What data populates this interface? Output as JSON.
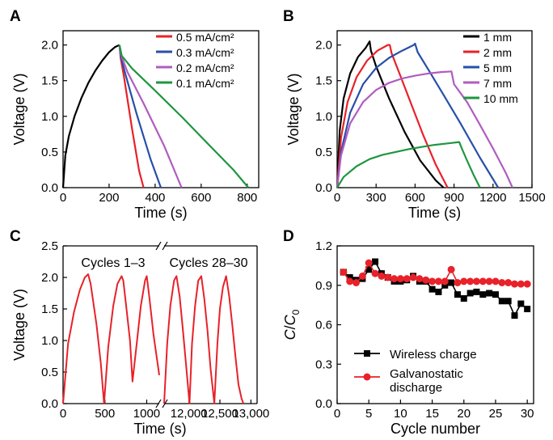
{
  "chart_data": [
    {
      "panel_letter": "A",
      "type": "line",
      "xlabel": "Time (s)",
      "ylabel": "Voltage (V)",
      "xlim": [
        0,
        850
      ],
      "ylim": [
        0,
        2.2
      ],
      "xticks": [
        0,
        200,
        400,
        600,
        800
      ],
      "yticks": [
        0.0,
        0.5,
        1.0,
        1.5,
        2.0
      ],
      "legend": "top-right",
      "series": [
        {
          "name": "",
          "color": "#000000",
          "x": [
            0,
            10,
            25,
            50,
            80,
            110,
            140,
            170,
            200,
            225,
            245
          ],
          "y": [
            0,
            0.45,
            0.72,
            1.0,
            1.26,
            1.47,
            1.64,
            1.78,
            1.9,
            1.97,
            2.0
          ]
        },
        {
          "name": "0.5 mA/cm²",
          "color": "#e8212a",
          "x": [
            245,
            250,
            265,
            300,
            330,
            350
          ],
          "y": [
            2.0,
            1.82,
            1.55,
            0.82,
            0.24,
            0
          ]
        },
        {
          "name": "0.3 mA/cm²",
          "color": "#2650a8",
          "x": [
            245,
            250,
            270,
            320,
            380,
            425
          ],
          "y": [
            2.0,
            1.85,
            1.6,
            1.03,
            0.4,
            0
          ]
        },
        {
          "name": "0.2 mA/cm²",
          "color": "#b05cc0",
          "x": [
            245,
            252,
            280,
            350,
            440,
            515
          ],
          "y": [
            2.0,
            1.86,
            1.62,
            1.18,
            0.58,
            0
          ]
        },
        {
          "name": "0.1 mA/cm²",
          "color": "#1e9640",
          "x": [
            245,
            255,
            300,
            400,
            520,
            640,
            740,
            805
          ],
          "y": [
            2.0,
            1.85,
            1.67,
            1.36,
            0.98,
            0.58,
            0.25,
            0
          ]
        }
      ]
    },
    {
      "panel_letter": "B",
      "type": "line",
      "xlabel": "Time (s)",
      "ylabel": "Voltage (V)",
      "xlim": [
        0,
        1500
      ],
      "ylim": [
        0,
        2.2
      ],
      "xticks": [
        0,
        300,
        600,
        900,
        1200,
        1500
      ],
      "yticks": [
        0.0,
        0.5,
        1.0,
        1.5,
        2.0
      ],
      "legend": "top-right",
      "series": [
        {
          "name": "1 mm",
          "color": "#000000",
          "x": [
            0,
            20,
            50,
            100,
            160,
            220,
            250,
            260,
            300,
            400,
            520,
            640,
            760,
            820
          ],
          "y": [
            0,
            0.8,
            1.25,
            1.6,
            1.83,
            1.96,
            2.05,
            1.92,
            1.7,
            1.25,
            0.78,
            0.38,
            0.1,
            0
          ]
        },
        {
          "name": "2 mm",
          "color": "#e8212a",
          "x": [
            0,
            30,
            80,
            150,
            230,
            310,
            390,
            405,
            420,
            480,
            560,
            660,
            760,
            850
          ],
          "y": [
            0,
            0.7,
            1.2,
            1.55,
            1.78,
            1.92,
            2.0,
            2.0,
            1.88,
            1.6,
            1.22,
            0.75,
            0.32,
            0
          ]
        },
        {
          "name": "5 mm",
          "color": "#2650a8",
          "x": [
            0,
            30,
            100,
            200,
            300,
            400,
            500,
            590,
            600,
            620,
            700,
            820,
            950,
            1100,
            1240
          ],
          "y": [
            0,
            0.5,
            1.05,
            1.45,
            1.68,
            1.82,
            1.92,
            2.0,
            2.02,
            1.9,
            1.66,
            1.3,
            0.9,
            0.42,
            0
          ]
        },
        {
          "name": "7 mm",
          "color": "#b05cc0",
          "x": [
            0,
            30,
            100,
            200,
            300,
            400,
            500,
            600,
            700,
            800,
            880,
            900,
            1000,
            1100,
            1200,
            1300,
            1350
          ],
          "y": [
            0,
            0.45,
            0.9,
            1.2,
            1.37,
            1.47,
            1.53,
            1.57,
            1.6,
            1.62,
            1.63,
            1.45,
            1.2,
            0.88,
            0.55,
            0.2,
            0
          ]
        },
        {
          "name": "10 mm",
          "color": "#1e9640",
          "x": [
            0,
            50,
            150,
            250,
            350,
            450,
            550,
            650,
            750,
            850,
            940,
            960,
            1000,
            1050,
            1100
          ],
          "y": [
            0,
            0.15,
            0.3,
            0.4,
            0.46,
            0.5,
            0.54,
            0.57,
            0.6,
            0.62,
            0.64,
            0.55,
            0.38,
            0.18,
            0
          ]
        }
      ]
    },
    {
      "panel_letter": "C",
      "type": "line",
      "xlabel": "Time (s)",
      "ylabel": "Voltage (V)",
      "ylim": [
        0,
        2.5
      ],
      "yticks": [
        0.0,
        0.5,
        1.0,
        1.5,
        2.0,
        2.5
      ],
      "axis_break": true,
      "left_segment": {
        "xlim": [
          0,
          1150
        ],
        "xticks": [
          0,
          500,
          1000
        ]
      },
      "right_segment": {
        "xlim": [
          11600,
          13100
        ],
        "xticks": [
          12000,
          12500,
          13000
        ]
      },
      "tick_labels": {
        "x0": "0",
        "x500": "500",
        "x1000": "1000",
        "x12000": "12,000",
        "x12500": "12,500",
        "x13000": "13,000"
      },
      "annotations": [
        "Cycles 1–3",
        "Cycles 28–30"
      ],
      "series": [
        {
          "name": "",
          "color": "#e8212a",
          "x_left": [
            0,
            60,
            130,
            200,
            260,
            300,
            330,
            400,
            450,
            490,
            540,
            600,
            650,
            700,
            720,
            750,
            800,
            830,
            880,
            930,
            980,
            1000,
            1030,
            1080,
            1150
          ],
          "y_left": [
            0,
            0.95,
            1.45,
            1.8,
            2.0,
            2.05,
            1.9,
            1.25,
            0.65,
            0,
            0.9,
            1.55,
            1.9,
            2.02,
            1.95,
            1.6,
            1.0,
            0.35,
            0.95,
            1.55,
            1.95,
            2.02,
            1.7,
            1.1,
            0.45
          ],
          "x_right": [
            11600,
            11650,
            11700,
            11760,
            11800,
            11850,
            11900,
            11960,
            12010,
            12050,
            12100,
            12150,
            12200,
            12250,
            12300,
            12350,
            12410,
            12460,
            12500,
            12550,
            12600,
            12650,
            12700,
            12750,
            12800,
            12850,
            12880
          ],
          "y_right": [
            0,
            0.95,
            1.55,
            1.95,
            2.02,
            1.7,
            1.2,
            0.55,
            0,
            0.95,
            1.55,
            1.95,
            2.02,
            1.65,
            1.15,
            0.55,
            0,
            0.95,
            1.5,
            1.85,
            2.02,
            1.7,
            1.25,
            0.75,
            0.3,
            0.08,
            0
          ]
        }
      ]
    },
    {
      "panel_letter": "D",
      "type": "line",
      "xlabel": "Cycle number",
      "ylabel": "C/C0",
      "ylabel_main": "C",
      "ylabel_sub": "0",
      "xlim": [
        0,
        31
      ],
      "ylim": [
        0,
        1.2
      ],
      "xticks": [
        0,
        5,
        10,
        15,
        20,
        25,
        30
      ],
      "yticks": [
        0.0,
        0.3,
        0.6,
        0.9,
        1.2
      ],
      "tick_labels": {
        "y0": "0.0",
        "y1": "0.3",
        "y2": "0.6",
        "y3": "0.9",
        "y4": "1.2"
      },
      "legend": "bottom-left",
      "series": [
        {
          "name": "Wireless charge",
          "color": "#000000",
          "marker": "square",
          "x": [
            1,
            2,
            3,
            4,
            5,
            6,
            7,
            8,
            9,
            10,
            11,
            12,
            13,
            14,
            15,
            16,
            17,
            18,
            19,
            20,
            21,
            22,
            23,
            24,
            25,
            26,
            27,
            28,
            29,
            30
          ],
          "y": [
            1.0,
            0.96,
            0.94,
            0.95,
            1.02,
            1.08,
            0.99,
            0.96,
            0.93,
            0.93,
            0.94,
            0.97,
            0.93,
            0.93,
            0.87,
            0.85,
            0.9,
            0.92,
            0.83,
            0.8,
            0.84,
            0.85,
            0.83,
            0.84,
            0.83,
            0.78,
            0.78,
            0.67,
            0.76,
            0.72
          ]
        },
        {
          "name": "Galvanostatic discharge",
          "name_lines": [
            "Galvanostatic",
            "discharge"
          ],
          "color": "#e8212a",
          "marker": "circle",
          "x": [
            1,
            2,
            3,
            4,
            5,
            6,
            7,
            8,
            9,
            10,
            11,
            12,
            13,
            14,
            15,
            16,
            17,
            18,
            19,
            20,
            21,
            22,
            23,
            24,
            25,
            26,
            27,
            28,
            29,
            30
          ],
          "y": [
            1.0,
            0.93,
            0.92,
            0.97,
            1.07,
            0.99,
            0.97,
            0.96,
            0.95,
            0.95,
            0.95,
            0.96,
            0.95,
            0.94,
            0.93,
            0.93,
            0.93,
            1.02,
            0.92,
            0.93,
            0.93,
            0.93,
            0.93,
            0.93,
            0.93,
            0.92,
            0.92,
            0.91,
            0.91,
            0.91
          ]
        }
      ]
    }
  ]
}
